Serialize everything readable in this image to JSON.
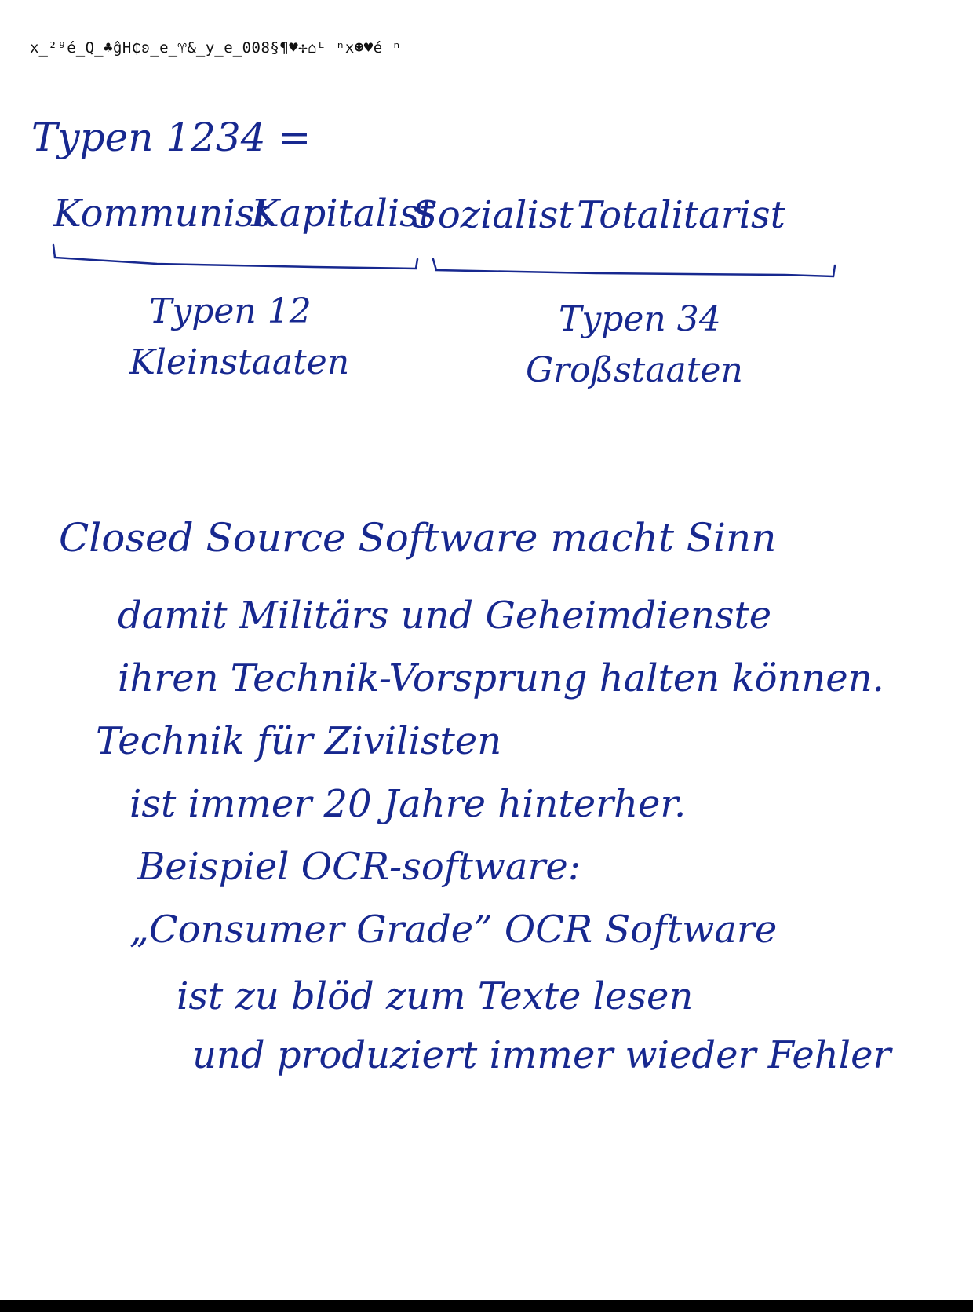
{
  "header_garbled": "x̲²⁹é̲Q̲♣ĝH₵ʚ̲e̲♈&̲y̲e̲008§¶♥✢⌂ᴸ ⁿx☻♥é ⁿ",
  "notes": {
    "line1": "Typen 1234 =",
    "types": [
      "Kommunist",
      "Kapitalist",
      "Sozialist",
      "Totalitarist"
    ],
    "group_left_label": "Typen 12",
    "group_left_sub": "Kleinstaaten",
    "group_right_label": "Typen 34",
    "group_right_sub": "Großstaaten",
    "para": [
      "Closed Source Software macht Sinn",
      "damit Militärs und Geheimdienste",
      "ihren Technik-Vorsprung halten können.",
      "Technik für Zivilisten",
      "ist immer 20 Jahre hinterher.",
      "Beispiel OCR-software:",
      "„Consumer Grade” OCR Software",
      "ist zu blöd zum Texte lesen",
      "und produziert immer wieder Fehler"
    ]
  },
  "colors": {
    "ink": "#17288f",
    "paper": "#ffffff",
    "bottom_edge": "#000000"
  }
}
